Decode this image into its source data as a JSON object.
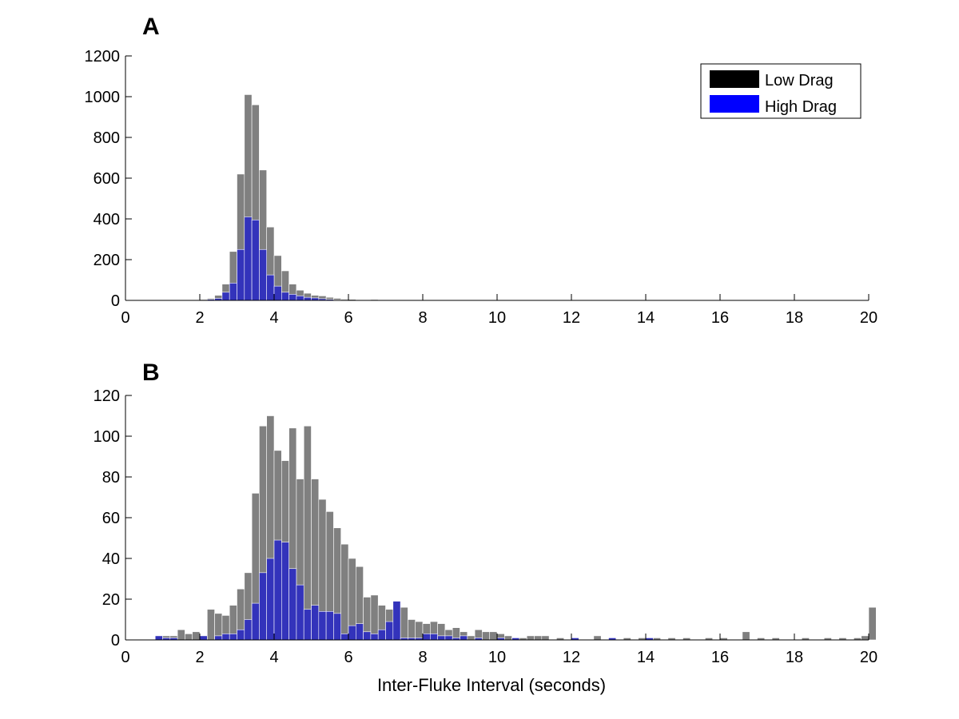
{
  "chart_data": [
    {
      "type": "bar",
      "panel_label": "A",
      "xlabel": "",
      "ylabel": "",
      "xlim": [
        0,
        20
      ],
      "ylim": [
        0,
        1200
      ],
      "xticks": [
        0,
        2,
        4,
        6,
        8,
        10,
        12,
        14,
        16,
        18,
        20
      ],
      "yticks": [
        0,
        200,
        400,
        600,
        800,
        1000,
        1200
      ],
      "bin_width": 0.2,
      "legend": {
        "placement": "top-right",
        "entries": [
          "Low Drag",
          "High Drag"
        ]
      },
      "colors": {
        "low": "#808080",
        "high": "#3333bb",
        "legend_low": "#000000",
        "legend_high": "#0000ff"
      },
      "series": [
        {
          "name": "Low Drag",
          "x": [
            1.2,
            1.4,
            1.8,
            2.0,
            2.2,
            2.4,
            2.6,
            2.8,
            3.0,
            3.2,
            3.4,
            3.6,
            3.8,
            4.0,
            4.2,
            4.4,
            4.6,
            4.8,
            5.0,
            5.2,
            5.4,
            5.6,
            5.8,
            6.0,
            6.2,
            6.4,
            6.6,
            6.8
          ],
          "values": [
            3,
            5,
            3,
            4,
            10,
            25,
            80,
            240,
            620,
            1010,
            960,
            640,
            360,
            220,
            145,
            80,
            50,
            35,
            25,
            22,
            15,
            10,
            6,
            5,
            3,
            3,
            4,
            2
          ]
        },
        {
          "name": "High Drag",
          "x": [
            1.2,
            1.4,
            2.2,
            2.4,
            2.6,
            2.8,
            3.0,
            3.2,
            3.4,
            3.6,
            3.8,
            4.0,
            4.2,
            4.4,
            4.6,
            4.8,
            5.0,
            5.2,
            5.4,
            5.6,
            5.8,
            6.0
          ],
          "values": [
            2,
            3,
            5,
            10,
            40,
            85,
            250,
            410,
            395,
            250,
            125,
            70,
            40,
            30,
            22,
            15,
            12,
            8,
            5,
            3,
            2,
            1
          ]
        }
      ]
    },
    {
      "type": "bar",
      "panel_label": "B",
      "xlabel": "Inter-Fluke Interval (seconds)",
      "ylabel": "",
      "xlim": [
        0,
        20
      ],
      "ylim": [
        0,
        120
      ],
      "xticks": [
        0,
        2,
        4,
        6,
        8,
        10,
        12,
        14,
        16,
        18,
        20
      ],
      "yticks": [
        0,
        20,
        40,
        60,
        80,
        100,
        120
      ],
      "bin_width": 0.2,
      "colors": {
        "low": "#808080",
        "high": "#3333bb"
      },
      "series": [
        {
          "name": "Low Drag",
          "x": [
            0.8,
            1.0,
            1.2,
            1.4,
            1.6,
            1.8,
            2.0,
            2.2,
            2.4,
            2.6,
            2.8,
            3.0,
            3.2,
            3.4,
            3.6,
            3.8,
            4.0,
            4.2,
            4.4,
            4.6,
            4.8,
            5.0,
            5.2,
            5.4,
            5.6,
            5.8,
            6.0,
            6.2,
            6.4,
            6.6,
            6.8,
            7.0,
            7.2,
            7.4,
            7.6,
            7.8,
            8.0,
            8.2,
            8.4,
            8.6,
            8.8,
            9.0,
            9.2,
            9.4,
            9.6,
            9.8,
            10.0,
            10.2,
            10.4,
            10.6,
            10.8,
            11.0,
            11.2,
            11.6,
            12.0,
            12.6,
            13.0,
            13.4,
            13.8,
            14.2,
            14.6,
            15.0,
            15.6,
            16.0,
            16.6,
            17.0,
            17.4,
            18.2,
            18.8,
            19.2,
            19.6,
            19.8,
            20.0
          ],
          "values": [
            2,
            2,
            2,
            5,
            3,
            4,
            2,
            15,
            13,
            12,
            17,
            25,
            33,
            72,
            105,
            110,
            93,
            88,
            104,
            79,
            105,
            79,
            69,
            63,
            55,
            47,
            40,
            36,
            21,
            22,
            17,
            15,
            10,
            16,
            10,
            9,
            8,
            9,
            8,
            5,
            6,
            4,
            2,
            5,
            4,
            4,
            3,
            2,
            1,
            1,
            2,
            2,
            2,
            1,
            1,
            2,
            1,
            1,
            1,
            1,
            1,
            1,
            1,
            1,
            4,
            1,
            1,
            1,
            1,
            1,
            1,
            2,
            16
          ]
        },
        {
          "name": "High Drag",
          "x": [
            0.8,
            1.0,
            1.2,
            2.0,
            2.4,
            2.6,
            2.8,
            3.0,
            3.2,
            3.4,
            3.6,
            3.8,
            4.0,
            4.2,
            4.4,
            4.6,
            4.8,
            5.0,
            5.2,
            5.4,
            5.6,
            5.8,
            6.0,
            6.2,
            6.4,
            6.6,
            6.8,
            7.0,
            7.2,
            7.4,
            7.6,
            7.8,
            8.0,
            8.2,
            8.4,
            8.6,
            8.8,
            9.0,
            9.4,
            10.0,
            10.4,
            12.0,
            13.0,
            14.0
          ],
          "values": [
            2,
            1,
            1,
            2,
            2,
            3,
            3,
            5,
            10,
            18,
            33,
            40,
            49,
            48,
            35,
            27,
            15,
            17,
            14,
            14,
            13,
            3,
            7,
            8,
            4,
            3,
            5,
            9,
            19,
            1,
            1,
            1,
            3,
            3,
            2,
            2,
            1,
            2,
            1,
            1,
            1,
            1,
            1,
            1
          ]
        }
      ]
    }
  ]
}
